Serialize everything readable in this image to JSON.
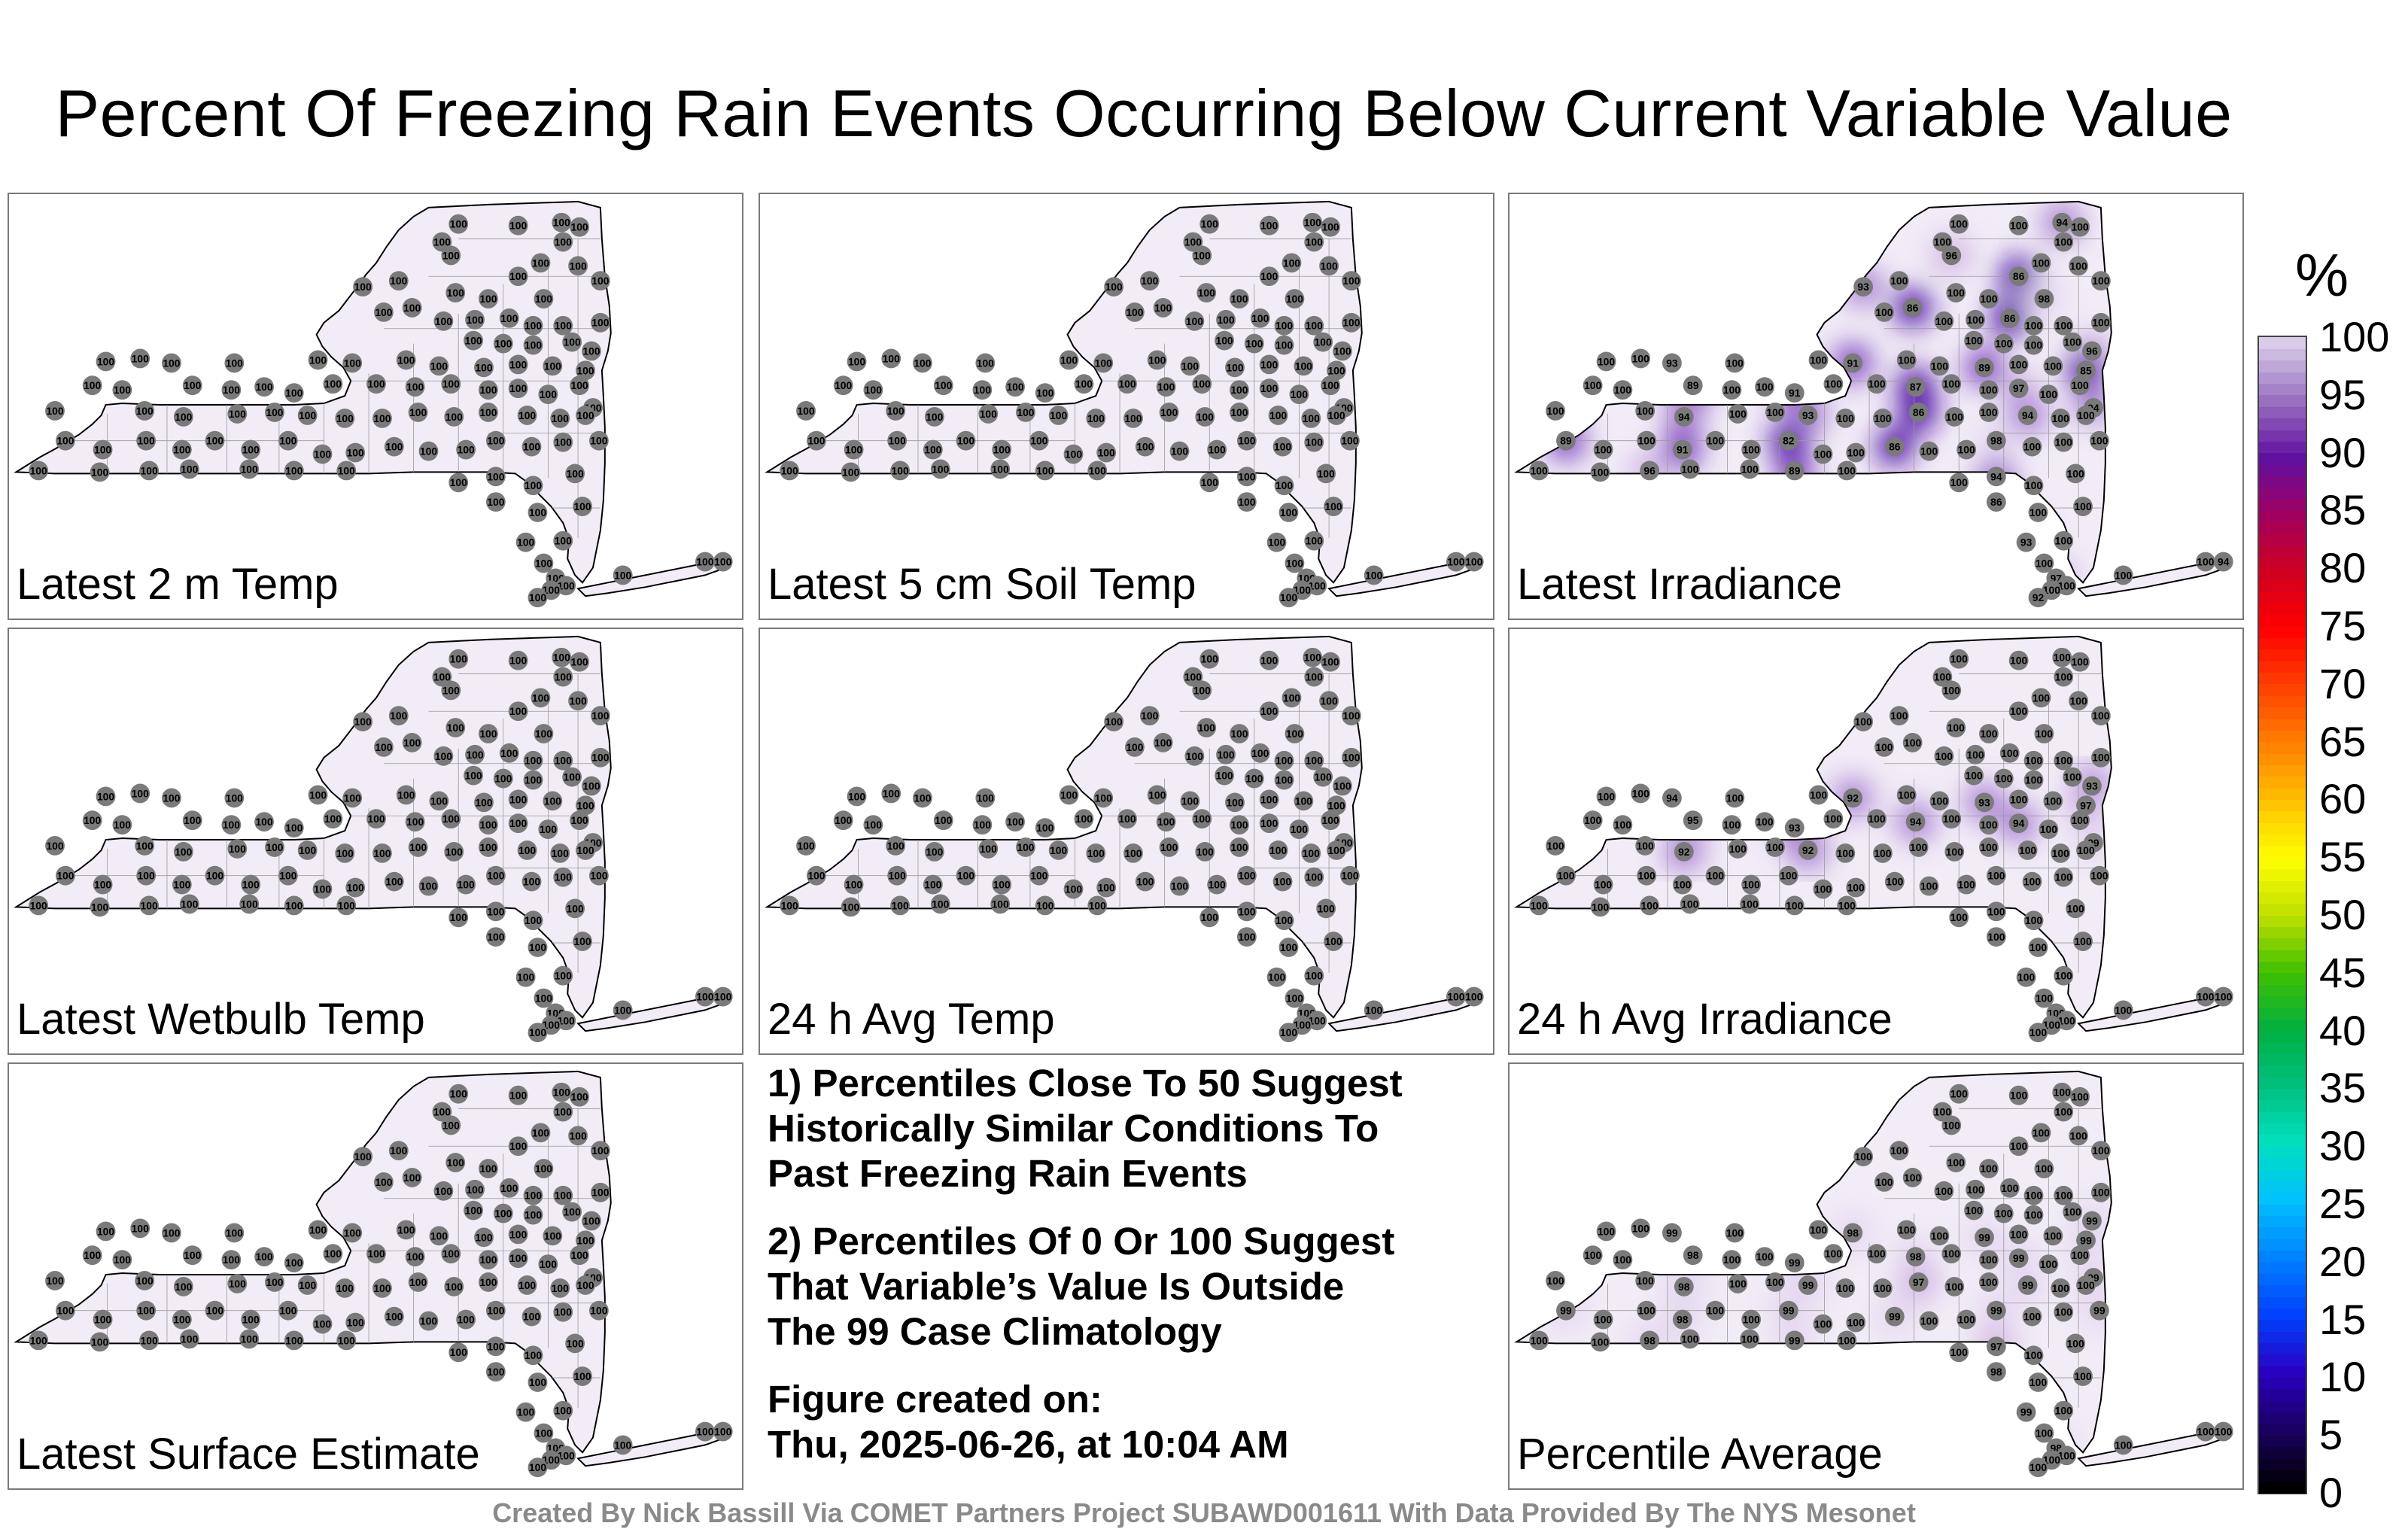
{
  "title": "Percent Of Freezing Rain Events Occurring Below Current Variable Value",
  "panels": [
    {
      "id": "latest-2m-temp",
      "label": "Latest 2 m Temp",
      "shade": "none"
    },
    {
      "id": "latest-5cm-soil-temp",
      "label": "Latest 5 cm Soil Temp",
      "shade": "none"
    },
    {
      "id": "latest-irradiance",
      "label": "Latest Irradiance",
      "shade": "strong"
    },
    {
      "id": "latest-wetbulb-temp",
      "label": "Latest Wetbulb Temp",
      "shade": "none"
    },
    {
      "id": "24h-avg-temp",
      "label": "24 h Avg Temp",
      "shade": "none"
    },
    {
      "id": "24h-avg-irradiance",
      "label": "24 h Avg Irradiance",
      "shade": "medium"
    },
    {
      "id": "latest-surface-estimate",
      "label": "Latest Surface Estimate",
      "shade": "none"
    },
    {
      "id": "percentile-average",
      "label": "Percentile Average",
      "shade": "light"
    }
  ],
  "station_default_value": "100",
  "special_values": {
    "latest-irradiance": [
      "96",
      "93",
      "91",
      "89",
      "85",
      "89",
      "91",
      "87",
      "97",
      "94",
      "94",
      "93",
      "86",
      "94",
      "89",
      "91",
      "82",
      "86",
      "98",
      "100",
      "96",
      "89",
      "94",
      "86",
      "93",
      "97",
      "92",
      "94",
      "94",
      "96",
      "93",
      "86",
      "98",
      "86",
      "86"
    ],
    "24h-avg-irradiance": [
      "93",
      "94",
      "92",
      "93",
      "97",
      "95",
      "93",
      "94",
      "94",
      "99",
      "92",
      "92"
    ],
    "percentile-average": [
      "99",
      "99",
      "98",
      "99",
      "99",
      "98",
      "99",
      "98",
      "99",
      "99",
      "98",
      "99",
      "97",
      "99",
      "99",
      "98",
      "99",
      "99",
      "99",
      "99",
      "98",
      "99",
      "97",
      "98",
      "99",
      "98"
    ]
  },
  "notes": {
    "n1": [
      "1) Percentiles Close To 50 Suggest",
      "Historically Similar Conditions To",
      "Past Freezing Rain Events"
    ],
    "n2": [
      "2) Percentiles Of 0 Or 100 Suggest",
      "That Variable’s Value Is Outside",
      "The 99 Case Climatology"
    ],
    "n3": [
      "Figure created on:",
      "Thu, 2025-06-26, at 10:04 AM"
    ]
  },
  "footer": "Created By Nick Bassill Via COMET Partners Project SUBAWD001611 With Data Provided By The NYS Mesonet",
  "colorbar": {
    "unit": "%",
    "ticks": [
      "0",
      "5",
      "10",
      "15",
      "20",
      "25",
      "30",
      "35",
      "40",
      "45",
      "50",
      "55",
      "60",
      "65",
      "70",
      "75",
      "80",
      "85",
      "90",
      "95",
      "100"
    ],
    "colors": [
      "#000000",
      "#1a0060",
      "#2a00c0",
      "#0040ff",
      "#0080ff",
      "#00c0ff",
      "#00e0c0",
      "#00c080",
      "#00b040",
      "#40c000",
      "#c0e000",
      "#ffff00",
      "#ffc000",
      "#ff8000",
      "#ff4000",
      "#ff0000",
      "#d00020",
      "#a00060",
      "#6010a0",
      "#9a70c0",
      "#d8cce8"
    ]
  }
}
